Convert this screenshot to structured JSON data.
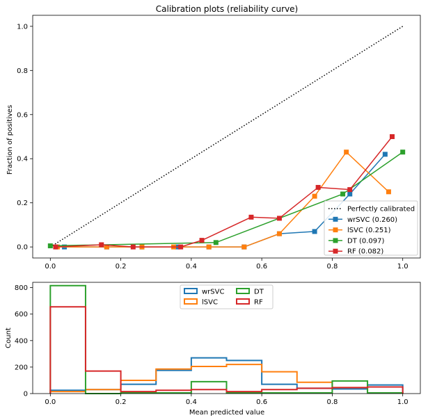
{
  "chart_data": [
    {
      "type": "line",
      "title": "Calibration plots  (reliability curve)",
      "xlabel": "",
      "ylabel": "Fraction of positives",
      "xlim": [
        -0.05,
        1.05
      ],
      "ylim": [
        -0.05,
        1.05
      ],
      "xticks": [
        0.0,
        0.2,
        0.4,
        0.6,
        0.8,
        1.0
      ],
      "yticks": [
        0.0,
        0.2,
        0.4,
        0.6,
        0.8,
        1.0
      ],
      "tick_labels_x": [
        "0.0",
        "0.2",
        "0.4",
        "0.6",
        "0.8",
        "1.0"
      ],
      "tick_labels_y": [
        "0.0",
        "0.2",
        "0.4",
        "0.6",
        "0.8",
        "1.0"
      ],
      "legend_position": "lower right",
      "reference_line": {
        "name": "Perfectly calibrated",
        "x": [
          0,
          1
        ],
        "y": [
          0,
          1
        ],
        "color": "#000000",
        "style": "dotted"
      },
      "series": [
        {
          "name": "wrSVC  (0.260)",
          "color": "#1f77b4",
          "x": [
            0.04,
            0.16,
            0.26,
            0.36,
            0.45,
            0.55,
            0.65,
            0.75,
            0.85,
            0.95
          ],
          "y": [
            0.0,
            0.0,
            0.0,
            0.0,
            0.0,
            0.0,
            0.06,
            0.07,
            0.24,
            0.42
          ]
        },
        {
          "name": "lSVC  (0.251)",
          "color": "#ff7f0e",
          "x": [
            0.02,
            0.16,
            0.26,
            0.35,
            0.45,
            0.55,
            0.65,
            0.75,
            0.84,
            0.96
          ],
          "y": [
            0.0,
            0.0,
            0.0,
            0.0,
            0.0,
            0.0,
            0.06,
            0.23,
            0.43,
            0.25
          ]
        },
        {
          "name": "DT  (0.097)",
          "color": "#2ca02c",
          "x": [
            0.0,
            0.47,
            0.83,
            1.0
          ],
          "y": [
            0.005,
            0.02,
            0.24,
            0.43
          ]
        },
        {
          "name": "RF  (0.082)",
          "color": "#d62728",
          "x": [
            0.015,
            0.145,
            0.235,
            0.37,
            0.43,
            0.57,
            0.65,
            0.76,
            0.85,
            0.97
          ],
          "y": [
            0.0,
            0.01,
            0.0,
            0.0,
            0.03,
            0.135,
            0.13,
            0.27,
            0.26,
            0.5
          ]
        }
      ]
    },
    {
      "type": "histogram",
      "title": "",
      "xlabel": "Mean predicted value",
      "ylabel": "Count",
      "xlim": [
        -0.05,
        1.05
      ],
      "ylim": [
        0,
        840
      ],
      "xticks": [
        0.0,
        0.2,
        0.4,
        0.6,
        0.8,
        1.0
      ],
      "yticks": [
        0,
        200,
        400,
        600,
        800
      ],
      "tick_labels_x": [
        "0.0",
        "0.2",
        "0.4",
        "0.6",
        "0.8",
        "1.0"
      ],
      "tick_labels_y": [
        "0",
        "200",
        "400",
        "600",
        "800"
      ],
      "bin_edges": [
        0.0,
        0.1,
        0.2,
        0.3,
        0.4,
        0.5,
        0.6,
        0.7,
        0.8,
        0.9,
        1.0
      ],
      "legend_position": "upper center",
      "legend_columns": 2,
      "series": [
        {
          "name": "wrSVC",
          "color": "#1f77b4",
          "counts": [
            25,
            30,
            70,
            175,
            270,
            250,
            70,
            40,
            35,
            65
          ]
        },
        {
          "name": "lSVC",
          "color": "#ff7f0e",
          "counts": [
            15,
            30,
            100,
            185,
            205,
            220,
            165,
            85,
            45,
            5
          ]
        },
        {
          "name": "DT",
          "color": "#2ca02c",
          "counts": [
            815,
            0,
            5,
            5,
            90,
            5,
            5,
            5,
            95,
            5
          ]
        },
        {
          "name": "RF",
          "color": "#d62728",
          "counts": [
            655,
            170,
            15,
            25,
            30,
            15,
            30,
            40,
            45,
            50
          ]
        }
      ]
    }
  ]
}
